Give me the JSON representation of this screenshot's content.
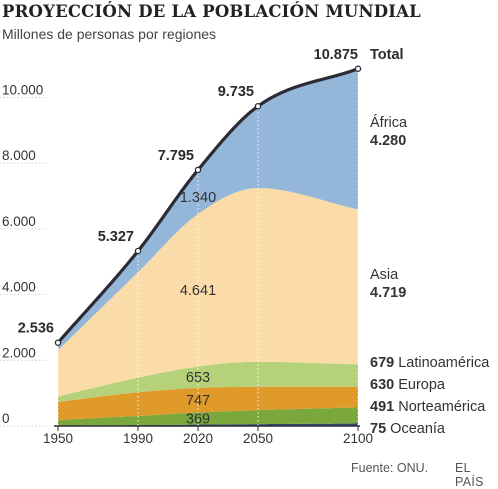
{
  "header": {
    "title": "PROYECCIÓN DE LA POBLACIÓN MUNDIAL",
    "subtitle": "Millones de personas por regiones"
  },
  "footer": {
    "source": "Fuente: ONU.",
    "brand": "EL PAÍS"
  },
  "chart_data": {
    "type": "area",
    "title": "PROYECCIÓN DE LA POBLACIÓN MUNDIAL",
    "subtitle": "Millones de personas por regiones",
    "x": [
      1950,
      1990,
      2020,
      2050,
      2100
    ],
    "x_ticks": [
      "1950",
      "1990",
      "2020",
      "2050",
      "2100"
    ],
    "ylim": [
      0,
      11000
    ],
    "y_ticks": [
      0,
      2000,
      4000,
      6000,
      8000,
      10000
    ],
    "y_tick_labels": [
      "0",
      "2.000",
      "4.000",
      "6.000",
      "8.000",
      "10.000"
    ],
    "grid": "vertical dotted lines at x ticks",
    "stack_order_bottom_to_top": [
      "Oceanía",
      "Norteamérica",
      "Europa",
      "Latinoamérica",
      "Asia",
      "África"
    ],
    "series": [
      {
        "name": "Oceanía",
        "color": "#2e4a6e",
        "values": [
          13,
          27,
          43,
          57,
          75
        ]
      },
      {
        "name": "Norteamérica",
        "color": "#7aa83c",
        "values": [
          172,
          280,
          369,
          425,
          491
        ]
      },
      {
        "name": "Europa",
        "color": "#e09a2a",
        "values": [
          549,
          721,
          747,
          710,
          630
        ]
      },
      {
        "name": "Latinoamérica",
        "color": "#b5d27a",
        "values": [
          169,
          442,
          653,
          762,
          679
        ]
      },
      {
        "name": "Asia",
        "color": "#fbdca8",
        "values": [
          1405,
          3210,
          4641,
          5290,
          4719
        ]
      },
      {
        "name": "África",
        "color": "#94b7d9",
        "values": [
          228,
          647,
          1340,
          2491,
          4280
        ]
      }
    ],
    "total": {
      "name": "Total",
      "values": [
        2536,
        5327,
        7795,
        9735,
        10875
      ]
    },
    "total_labels": [
      "2.536",
      "5.327",
      "7.795",
      "9.735",
      "10.875"
    ],
    "total_series_label": "Total",
    "inside_labels": [
      {
        "series": "África",
        "x": 2020,
        "text": "1.340"
      },
      {
        "series": "Asia",
        "x": 2020,
        "text": "4.641"
      },
      {
        "series": "Latinoamérica",
        "x": 2020,
        "text": "653"
      },
      {
        "series": "Europa",
        "x": 2020,
        "text": "747"
      },
      {
        "series": "Norteamérica",
        "x": 2020,
        "text": "369"
      }
    ],
    "right_labels": [
      {
        "series": "África",
        "value": "4.280",
        "name": "África"
      },
      {
        "series": "Asia",
        "value": "4.719",
        "name": "Asia"
      },
      {
        "series": "Latinoamérica",
        "value": "679",
        "name": "Latinoamérica"
      },
      {
        "series": "Europa",
        "value": "630",
        "name": "Europa"
      },
      {
        "series": "Norteamérica",
        "value": "491",
        "name": "Norteamérica"
      },
      {
        "series": "Oceanía",
        "value": "75",
        "name": "Oceanía"
      }
    ],
    "colors": {
      "total_line": "#2b2b35",
      "axis": "#2b2b35",
      "grid": "#ffffff",
      "text": "#333333"
    }
  }
}
